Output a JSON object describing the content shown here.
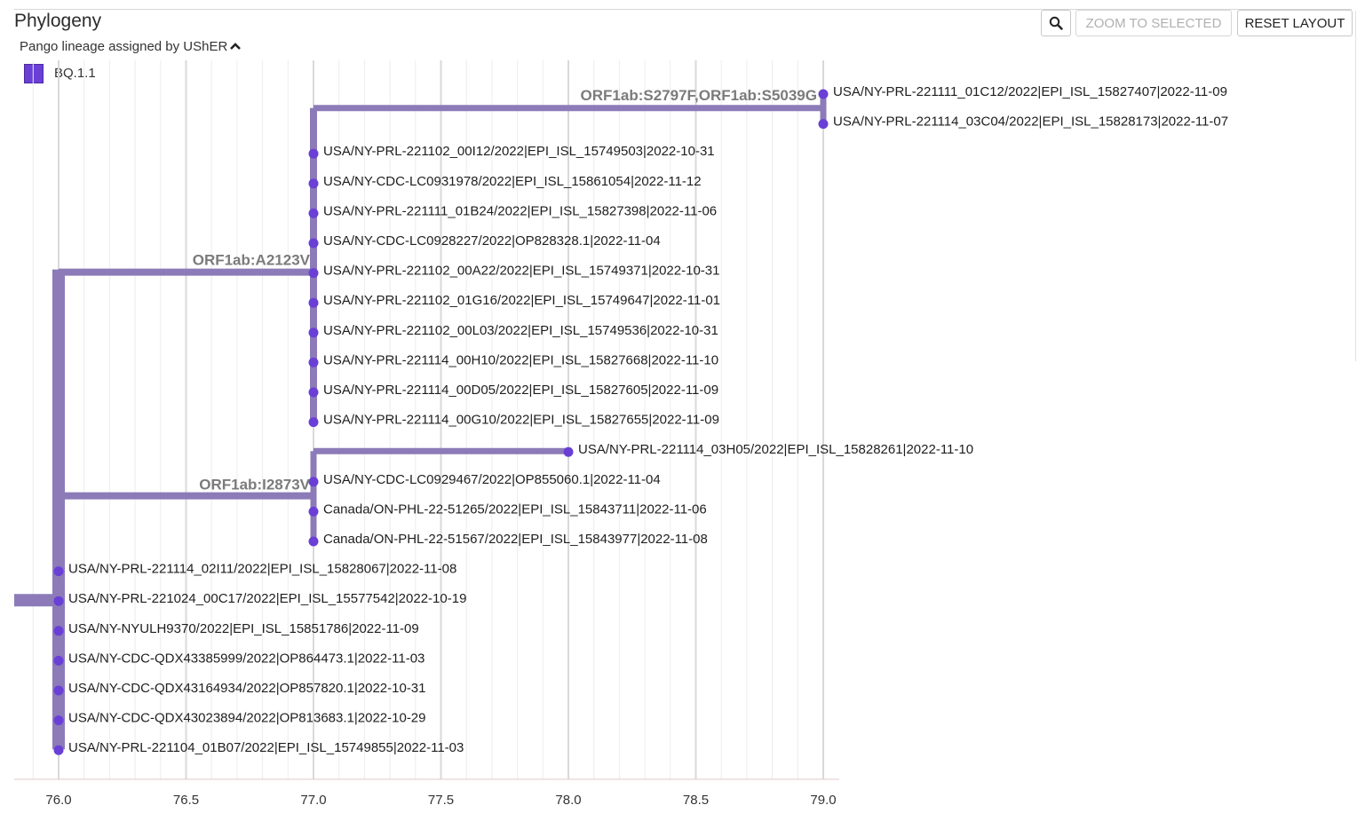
{
  "header": {
    "title": "Phylogeny",
    "legend_toggle": "Pango lineage assigned by UShER",
    "search_icon": "search-icon",
    "zoom_to_selected": "ZOOM TO SELECTED",
    "reset_layout": "RESET LAYOUT"
  },
  "legend": {
    "items": [
      {
        "label": "BQ.1.1",
        "color": "#6a3fd6"
      }
    ]
  },
  "colors": {
    "branch": "#8c7bb8",
    "node": "#6a3fd6",
    "grid_major": "#d9d9d9",
    "grid_minor": "#ececec",
    "axis": "#e0c8c8",
    "mutation_label": "#7b7b7b"
  },
  "chart_data": {
    "type": "tree",
    "x_ticks": [
      76.0,
      76.5,
      77.0,
      77.5,
      78.0,
      78.5,
      79.0
    ],
    "xlim": [
      75.83,
      79.07
    ],
    "mutations": [
      {
        "id": "m_top",
        "label": "ORF1ab:S2797F,ORF1ab:S5039G"
      },
      {
        "id": "m_a",
        "label": "ORF1ab:A2123V"
      },
      {
        "id": "m_i",
        "label": "ORF1ab:I2873V"
      }
    ],
    "clades": [
      {
        "id": "root",
        "x": 76.0,
        "parent_x": 75.83,
        "y_index": 17,
        "children": [
          "m_a_clade",
          "m_i_clade"
        ]
      },
      {
        "id": "m_a_clade",
        "x": 77.0,
        "parent_x": 76.0,
        "y_index": 5,
        "mutation": "ORF1ab:A2123V"
      },
      {
        "id": "m_top_clade",
        "x": 79.0,
        "parent_x": 77.0,
        "y_index": 0.5,
        "mutation": "ORF1ab:S2797F,ORF1ab:S5039G"
      },
      {
        "id": "m_i_clade",
        "x": 77.0,
        "parent_x": 76.0,
        "y_index": 13,
        "mutation": "ORF1ab:I2873V"
      },
      {
        "id": "sub_03h05",
        "x": 78.0,
        "parent_x": 77.0,
        "y_index": 12
      }
    ],
    "leaves": [
      {
        "label": "USA/NY-PRL-221111_01C12/2022|EPI_ISL_15827407|2022-11-09",
        "x": 79.0
      },
      {
        "label": "USA/NY-PRL-221114_03C04/2022|EPI_ISL_15828173|2022-11-07",
        "x": 79.0
      },
      {
        "label": "USA/NY-PRL-221102_00I12/2022|EPI_ISL_15749503|2022-10-31",
        "x": 77.0
      },
      {
        "label": "USA/NY-CDC-LC0931978/2022|EPI_ISL_15861054|2022-11-12",
        "x": 77.0
      },
      {
        "label": "USA/NY-PRL-221111_01B24/2022|EPI_ISL_15827398|2022-11-06",
        "x": 77.0
      },
      {
        "label": "USA/NY-CDC-LC0928227/2022|OP828328.1|2022-11-04",
        "x": 77.0
      },
      {
        "label": "USA/NY-PRL-221102_00A22/2022|EPI_ISL_15749371|2022-10-31",
        "x": 77.0
      },
      {
        "label": "USA/NY-PRL-221102_01G16/2022|EPI_ISL_15749647|2022-11-01",
        "x": 77.0
      },
      {
        "label": "USA/NY-PRL-221102_00L03/2022|EPI_ISL_15749536|2022-10-31",
        "x": 77.0
      },
      {
        "label": "USA/NY-PRL-221114_00H10/2022|EPI_ISL_15827668|2022-11-10",
        "x": 77.0
      },
      {
        "label": "USA/NY-PRL-221114_00D05/2022|EPI_ISL_15827605|2022-11-09",
        "x": 77.0
      },
      {
        "label": "USA/NY-PRL-221114_00G10/2022|EPI_ISL_15827655|2022-11-09",
        "x": 77.0
      },
      {
        "label": "USA/NY-PRL-221114_03H05/2022|EPI_ISL_15828261|2022-11-10",
        "x": 78.0
      },
      {
        "label": "USA/NY-CDC-LC0929467/2022|OP855060.1|2022-11-04",
        "x": 77.0
      },
      {
        "label": "Canada/ON-PHL-22-51265/2022|EPI_ISL_15843711|2022-11-06",
        "x": 77.0
      },
      {
        "label": "Canada/ON-PHL-22-51567/2022|EPI_ISL_15843977|2022-11-08",
        "x": 77.0
      },
      {
        "label": "USA/NY-PRL-221114_02I11/2022|EPI_ISL_15828067|2022-11-08",
        "x": 76.0
      },
      {
        "label": "USA/NY-PRL-221024_00C17/2022|EPI_ISL_15577542|2022-10-19",
        "x": 76.0
      },
      {
        "label": "USA/NY-NYULH9370/2022|EPI_ISL_15851786|2022-11-09",
        "x": 76.0
      },
      {
        "label": "USA/NY-CDC-QDX43385999/2022|OP864473.1|2022-11-03",
        "x": 76.0
      },
      {
        "label": "USA/NY-CDC-QDX43164934/2022|OP857820.1|2022-10-31",
        "x": 76.0
      },
      {
        "label": "USA/NY-CDC-QDX43023894/2022|OP813683.1|2022-10-29",
        "x": 76.0
      },
      {
        "label": "USA/NY-PRL-221104_01B07/2022|EPI_ISL_15749855|2022-11-03",
        "x": 76.0
      }
    ]
  }
}
